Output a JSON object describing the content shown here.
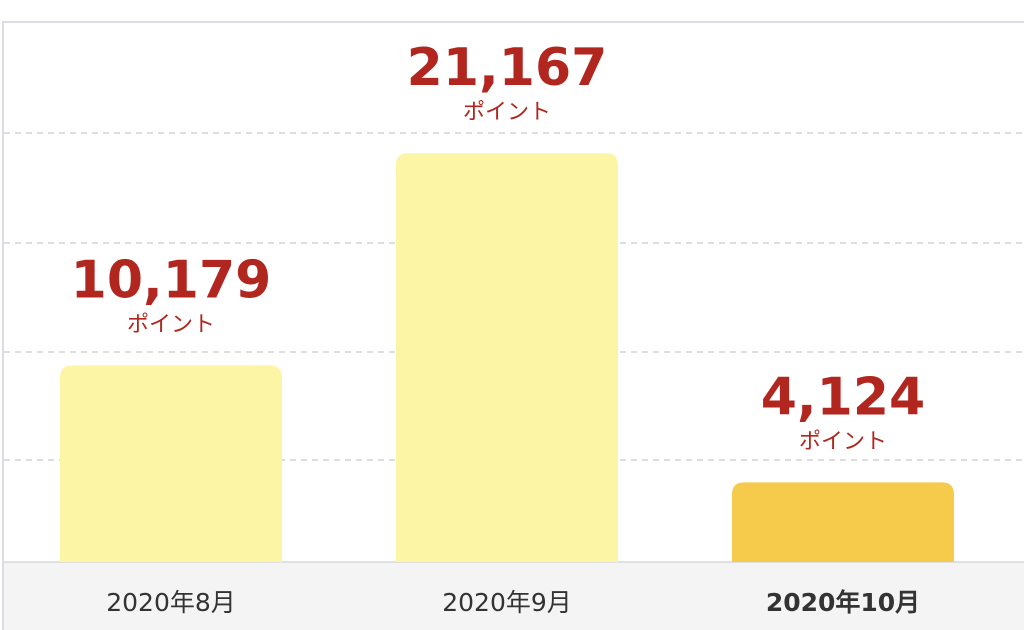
{
  "chart_data": {
    "type": "bar",
    "categories": [
      "2020年8月",
      "2020年9月",
      "2020年10月"
    ],
    "values": [
      10179,
      21167,
      4124
    ],
    "value_labels": [
      "10,179",
      "21,167",
      "4,124"
    ],
    "unit_label": "ポイント",
    "colors": [
      "#fdf5a6",
      "#fdf5a6",
      "#f6cb4c"
    ],
    "bold_category": 2,
    "ylim": [
      0,
      27800
    ]
  }
}
